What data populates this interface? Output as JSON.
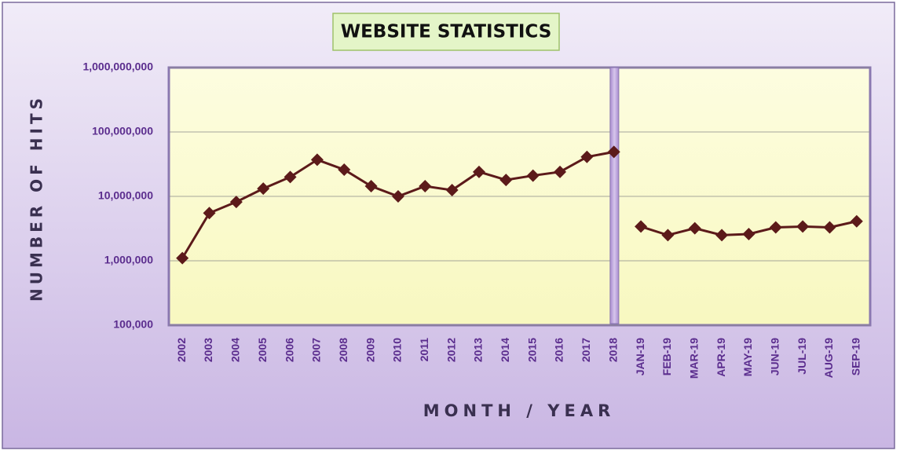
{
  "chart_data": {
    "type": "line",
    "title": "WEBSITE STATISTICS",
    "x_label": "MONTH / YEAR",
    "y_label": "NUMBER OF HITS",
    "categories": [
      "2002",
      "2003",
      "2004",
      "2005",
      "2006",
      "2007",
      "2008",
      "2009",
      "2010",
      "2011",
      "2012",
      "2013",
      "2014",
      "2015",
      "2016",
      "2017",
      "2018",
      "JAN-19",
      "FEB-19",
      "MAR-19",
      "APR-19",
      "MAY-19",
      "JUN-19",
      "JUL-19",
      "AUG-19",
      "SEP-19"
    ],
    "series": [
      {
        "color": "#5c1a1a",
        "values": [
          1100000,
          5500000,
          8200000,
          13200000,
          20000000,
          37000000,
          26000000,
          14400000,
          10000000,
          14400000,
          12500000,
          24000000,
          18000000,
          21000000,
          24000000,
          41000000,
          49000000,
          null,
          null,
          null,
          null,
          null,
          null,
          null,
          null,
          null
        ]
      },
      {
        "color": "#5c1a1a",
        "values": [
          null,
          null,
          null,
          null,
          null,
          null,
          null,
          null,
          null,
          null,
          null,
          null,
          null,
          null,
          null,
          null,
          null,
          3400000,
          2500000,
          3200000,
          2500000,
          2600000,
          3300000,
          3400000,
          3300000,
          4100000
        ]
      }
    ],
    "log_scale": true,
    "grid": true,
    "ylim": [
      100000,
      1000000000
    ],
    "yticks": [
      {
        "value": 100000,
        "label": "100,000"
      },
      {
        "value": 1000000,
        "label": "1,000,000"
      },
      {
        "value": 10000000,
        "label": "10,000,000"
      },
      {
        "value": 100000000,
        "label": "100,000,000"
      },
      {
        "value": 1000000000,
        "label": "1,000,000,000"
      }
    ]
  }
}
